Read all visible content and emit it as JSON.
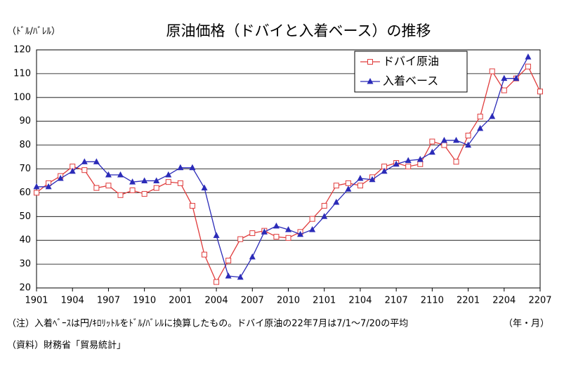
{
  "chart_data": {
    "type": "line",
    "title": "原油価格（ドバイと入着ベース）の推移",
    "y_label": "（ﾄﾞﾙ/ﾊﾞﾚﾙ）",
    "x_label": "（年・月）",
    "notes": [
      "（注）入着ﾍﾞｰｽは円/ｷﾛﾘｯﾄﾙをﾄﾞﾙ/ﾊﾞﾚﾙに換算したもの。ドバイ原油の22年7月は7/1～7/20の平均",
      "（資料）財務省「貿易統計」"
    ],
    "categories": [
      "1901",
      null,
      null,
      "1904",
      null,
      null,
      "1907",
      null,
      null,
      "1910",
      null,
      null,
      "2001",
      null,
      null,
      "2004",
      null,
      null,
      "2007",
      null,
      null,
      "2010",
      null,
      null,
      "2101",
      null,
      null,
      "2104",
      null,
      null,
      "2107",
      null,
      null,
      "2110",
      null,
      null,
      "2201",
      null,
      null,
      "2204",
      null,
      null,
      "2207"
    ],
    "series": [
      {
        "name": "ドバイ原油",
        "color": "#e03c3c",
        "marker": "square",
        "values": [
          60,
          64,
          67,
          71,
          69.5,
          62,
          63,
          59,
          61,
          59.5,
          62,
          64.5,
          64,
          54.5,
          34,
          22.5,
          31.5,
          40.5,
          43,
          44,
          41.5,
          41,
          43.5,
          49,
          54.5,
          63,
          64,
          63,
          66.5,
          71,
          72.5,
          71,
          72,
          81.5,
          80,
          73,
          84,
          92,
          111,
          103,
          108,
          113,
          102.5
        ]
      },
      {
        "name": "入着ベース",
        "color": "#2b2bb8",
        "marker": "triangle",
        "values": [
          62.5,
          62.5,
          66,
          69,
          73,
          73,
          67.5,
          67.5,
          64.5,
          65,
          65,
          67.5,
          70.5,
          70.5,
          62,
          42,
          25,
          24.5,
          33,
          43.5,
          46,
          44.5,
          42.5,
          44.5,
          50,
          56,
          61.5,
          66,
          65.5,
          69,
          72,
          73.5,
          74,
          77,
          82,
          82,
          80,
          87,
          92,
          108,
          108,
          117,
          null
        ]
      }
    ],
    "ylim": [
      20,
      120
    ],
    "yticks": [
      20,
      30,
      40,
      50,
      60,
      70,
      80,
      90,
      100,
      110,
      120
    ],
    "grid": true,
    "legend": "upper right"
  }
}
